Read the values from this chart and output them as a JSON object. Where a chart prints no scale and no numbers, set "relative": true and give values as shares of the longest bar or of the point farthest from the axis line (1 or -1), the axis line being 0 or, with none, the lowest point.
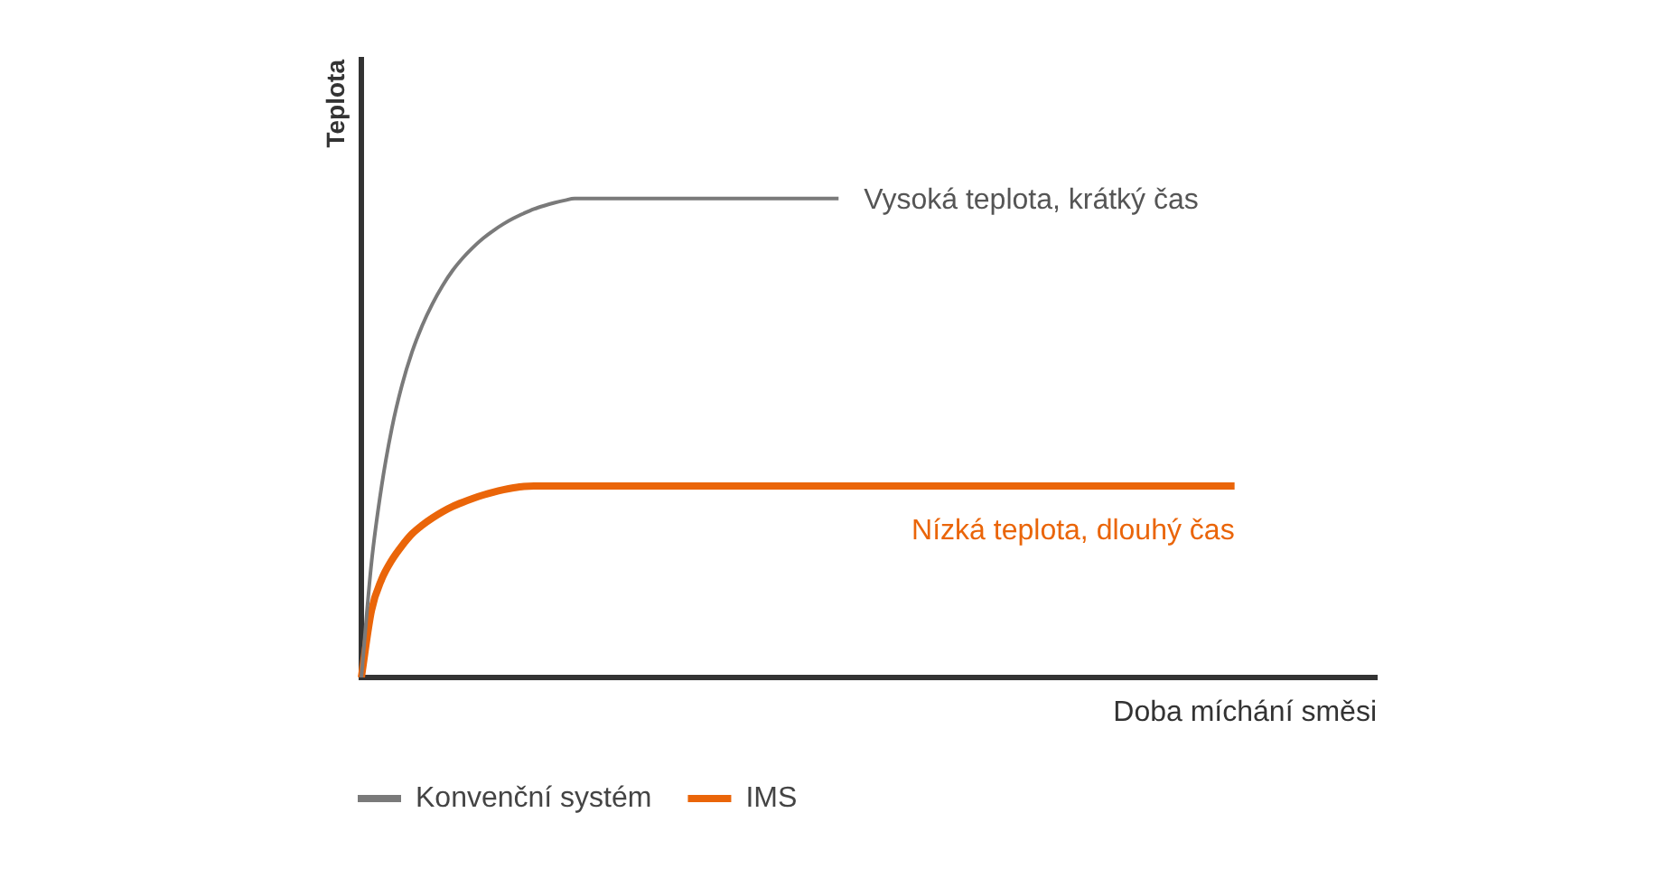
{
  "chart_data": {
    "type": "line",
    "relative": true,
    "xlabel": "Doba míchání směsi",
    "ylabel": "Teplota",
    "legend": "bottom left",
    "annotations": [
      "Vysoká teplota, krátký čas",
      "Nízká teplota, dlouhý čas"
    ],
    "categories": [
      null,
      null,
      null,
      null,
      null,
      null,
      null,
      null,
      null,
      null,
      null,
      null,
      null,
      null,
      null,
      null,
      null,
      null,
      null,
      null,
      null,
      null,
      null,
      null,
      null,
      null,
      null,
      null,
      null,
      null,
      null,
      null,
      null,
      null,
      null,
      null,
      null,
      null,
      null,
      null,
      null,
      null,
      null,
      null,
      null,
      null,
      null,
      null,
      null,
      null,
      null,
      null,
      null,
      null,
      null,
      null,
      null,
      null,
      null,
      null,
      null,
      null,
      null,
      null,
      null,
      null,
      null,
      null,
      null,
      null,
      null,
      null,
      null,
      null,
      null,
      null,
      null,
      null,
      null,
      null,
      null,
      null,
      null,
      null,
      null,
      null,
      null,
      null,
      null,
      null,
      null,
      null,
      null,
      null,
      null,
      null,
      null,
      null,
      null,
      null,
      null
    ],
    "series": [
      {
        "name": "Konvenční systém",
        "color": "#7a7a7a",
        "values": [
          0,
          0.24,
          0.4,
          0.52,
          0.61,
          0.68,
          0.735,
          0.78,
          0.818,
          0.85,
          0.876,
          0.898,
          0.917,
          0.933,
          0.947,
          0.959,
          0.969,
          0.978,
          0.985,
          0.991,
          0.996,
          1,
          1,
          1,
          1,
          1,
          1,
          1,
          1,
          1,
          1,
          1,
          1,
          1,
          1,
          1,
          1,
          1,
          1,
          1,
          1,
          1,
          1,
          1,
          1,
          1,
          1,
          1,
          null,
          null,
          null,
          null,
          null,
          null,
          null,
          null,
          null,
          null,
          null,
          null,
          null,
          null,
          null,
          null,
          null,
          null,
          null,
          null,
          null,
          null,
          null,
          null,
          null,
          null,
          null,
          null,
          null,
          null,
          null,
          null,
          null,
          null,
          null,
          null,
          null,
          null,
          null,
          null,
          null,
          null,
          null,
          null,
          null,
          null,
          null,
          null,
          null,
          null,
          null,
          null,
          null
        ]
      },
      {
        "name": "IMS",
        "color": "#ea6509",
        "values": [
          0,
          0.14,
          0.205,
          0.245,
          0.275,
          0.3,
          0.318,
          0.333,
          0.346,
          0.357,
          0.366,
          0.374,
          0.381,
          0.387,
          0.392,
          0.396,
          0.399,
          0.4,
          0.4,
          0.4,
          0.4,
          0.4,
          0.4,
          0.4,
          0.4,
          0.4,
          0.4,
          0.4,
          0.4,
          0.4,
          0.4,
          0.4,
          0.4,
          0.4,
          0.4,
          0.4,
          0.4,
          0.4,
          0.4,
          0.4,
          0.4,
          0.4,
          0.4,
          0.4,
          0.4,
          0.4,
          0.4,
          0.4,
          0.4,
          0.4,
          0.4,
          0.4,
          0.4,
          0.4,
          0.4,
          0.4,
          0.4,
          0.4,
          0.4,
          0.4,
          0.4,
          0.4,
          0.4,
          0.4,
          0.4,
          0.4,
          0.4,
          0.4,
          0.4,
          0.4,
          0.4,
          0.4,
          0.4,
          0.4,
          0.4,
          0.4,
          0.4,
          0.4,
          0.4,
          0.4,
          0.4,
          0.4,
          0.4,
          0.4,
          0.4,
          0.4,
          0.4,
          null,
          null,
          null,
          null,
          null,
          null,
          null,
          null,
          null,
          null,
          null,
          null,
          null,
          null
        ]
      }
    ]
  }
}
